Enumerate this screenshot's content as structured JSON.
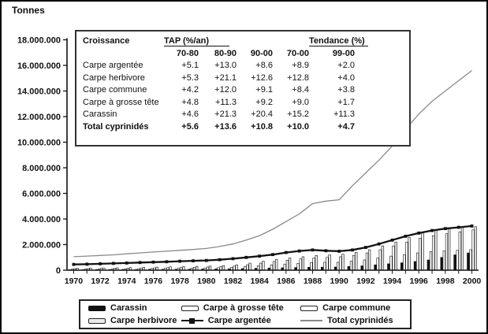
{
  "title": "Tonnes",
  "table": {
    "col0_header": "Croissance",
    "group1_header": "TAP (%/an)",
    "group2_header": "Tendance (%)",
    "period_headers": [
      "70-80",
      "80-90",
      "90-00",
      "70-00",
      "99-00"
    ],
    "rows": [
      {
        "label": "Carpe argentée",
        "values": [
          "+5.1",
          "+13.0",
          "+8.6",
          "+8.9",
          "+2.0"
        ],
        "bold": false
      },
      {
        "label": "Carpe herbivore",
        "values": [
          "+5.3",
          "+21.1",
          "+12.6",
          "+12.8",
          "+4.0"
        ],
        "bold": false
      },
      {
        "label": "Carpe commune",
        "values": [
          "+4.2",
          "+12.0",
          "+9.1",
          "+8.4",
          "+3.8"
        ],
        "bold": false
      },
      {
        "label": "Carpe à grosse tête",
        "values": [
          "+4.8",
          "+11.3",
          "+9.2",
          "+9.0",
          "+1.7"
        ],
        "bold": false
      },
      {
        "label": "Carassin",
        "values": [
          "+4.6",
          "+21.3",
          "+20.4",
          "+15.2",
          "+11.3"
        ],
        "bold": false
      },
      {
        "label": "Total cyprinidés",
        "values": [
          "+5.6",
          "+13.6",
          "+10.8",
          "+10.0",
          "+4.7"
        ],
        "bold": true
      }
    ]
  },
  "legend": {
    "items": [
      {
        "label": "Carassin",
        "swatch": "bar-black"
      },
      {
        "label": "Carpe à grosse tête",
        "swatch": "bar-white"
      },
      {
        "label": "Carpe commune",
        "swatch": "bar-white"
      },
      {
        "label": "Carpe herbivore",
        "swatch": "bar-light"
      },
      {
        "label": "Carpe argentée",
        "swatch": "line-marker"
      },
      {
        "label": "Total cyprinidés",
        "swatch": "line-thin"
      }
    ]
  },
  "chart_data": {
    "type": "bar+line",
    "title": "",
    "ylabel": "Tonnes",
    "xlabel": "",
    "ylim": [
      0,
      18000000
    ],
    "ytick_step": 2000000,
    "ytick_labels": [
      "0",
      "2.000.000",
      "4.000.000",
      "6.000.000",
      "8.000.000",
      "10.000.000",
      "12.000.000",
      "14.000.000",
      "16.000.000",
      "18.000.000"
    ],
    "x": [
      1970,
      1971,
      1972,
      1973,
      1974,
      1975,
      1976,
      1977,
      1978,
      1979,
      1980,
      1981,
      1982,
      1983,
      1984,
      1985,
      1986,
      1987,
      1988,
      1989,
      1990,
      1991,
      1992,
      1993,
      1994,
      1995,
      1996,
      1997,
      1998,
      1999,
      2000
    ],
    "x_tick_labels": [
      "1970",
      "1972",
      "1974",
      "1976",
      "1978",
      "1980",
      "1982",
      "1984",
      "1986",
      "1988",
      "1990",
      "1992",
      "1994",
      "1996",
      "1998",
      "2000"
    ],
    "grid": false,
    "legend_position": "bottom",
    "bar_series": [
      {
        "name": "Carassin",
        "fill": "#111111",
        "values": [
          40000,
          40000,
          50000,
          50000,
          60000,
          60000,
          70000,
          70000,
          80000,
          80000,
          90000,
          100000,
          110000,
          130000,
          150000,
          170000,
          190000,
          210000,
          230000,
          240000,
          250000,
          290000,
          340000,
          420000,
          500000,
          580000,
          680000,
          800000,
          1000000,
          1200000,
          1350000
        ]
      },
      {
        "name": "Carpe à grosse tête",
        "fill": "#ffffff",
        "values": [
          80000,
          90000,
          100000,
          100000,
          110000,
          120000,
          130000,
          140000,
          150000,
          160000,
          170000,
          190000,
          220000,
          280000,
          350000,
          420000,
          480000,
          540000,
          600000,
          620000,
          620000,
          700000,
          800000,
          950000,
          1100000,
          1220000,
          1350000,
          1450000,
          1500000,
          1550000,
          1600000
        ]
      },
      {
        "name": "Carpe commune",
        "fill": "#ffffff",
        "values": [
          120000,
          130000,
          140000,
          150000,
          160000,
          170000,
          180000,
          190000,
          210000,
          230000,
          250000,
          280000,
          320000,
          420000,
          550000,
          680000,
          780000,
          880000,
          950000,
          1000000,
          1050000,
          1150000,
          1350000,
          1600000,
          1900000,
          2200000,
          2500000,
          2700000,
          2850000,
          3000000,
          3150000
        ]
      },
      {
        "name": "Carpe herbivore",
        "fill": "#ececec",
        "values": [
          150000,
          160000,
          170000,
          180000,
          200000,
          220000,
          240000,
          260000,
          280000,
          300000,
          320000,
          360000,
          420000,
          550000,
          700000,
          850000,
          950000,
          1050000,
          1150000,
          1200000,
          1250000,
          1400000,
          1600000,
          1900000,
          2200000,
          2550000,
          2900000,
          3100000,
          3250000,
          3350000,
          3400000
        ]
      }
    ],
    "line_series": [
      {
        "name": "Total cyprinidés",
        "color": "#8a8a8a",
        "width": 1.3,
        "marker": "none",
        "values": [
          1050000,
          1100000,
          1150000,
          1200000,
          1280000,
          1350000,
          1420000,
          1480000,
          1550000,
          1620000,
          1700000,
          1850000,
          2050000,
          2350000,
          2700000,
          3200000,
          3800000,
          4400000,
          5200000,
          5400000,
          5500000,
          6600000,
          7600000,
          8600000,
          9700000,
          11000000,
          12200000,
          13200000,
          14000000,
          14800000,
          15600000
        ]
      },
      {
        "name": "Carpe argentée",
        "color": "#111111",
        "width": 2.3,
        "marker": "square",
        "values": [
          450000,
          470000,
          500000,
          530000,
          560000,
          600000,
          630000,
          660000,
          700000,
          730000,
          760000,
          820000,
          900000,
          1000000,
          1100000,
          1220000,
          1380000,
          1500000,
          1580000,
          1520000,
          1480000,
          1580000,
          1780000,
          2050000,
          2350000,
          2650000,
          2900000,
          3100000,
          3250000,
          3350000,
          3450000
        ]
      }
    ],
    "colors": {
      "axis": "#111111",
      "total_line": "#8a8a8a",
      "silver_carp_line": "#111111"
    }
  }
}
